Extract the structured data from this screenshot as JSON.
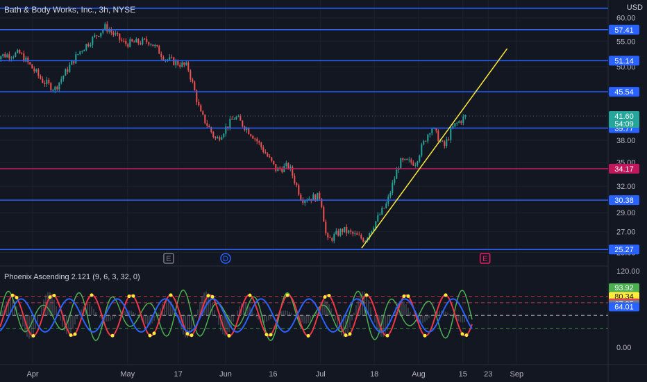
{
  "header": {
    "symbol_title": "Bath & Body Works, Inc., 3h, NYSE",
    "currency": "USD"
  },
  "indicator": {
    "title": "Phoenix Ascending 2.121 (9, 6, 3, 32, 0)",
    "y_ticks": [
      "120.00",
      "0.00"
    ],
    "badges": [
      {
        "label": "93.92",
        "value": 93.92,
        "color": "#4caf50"
      },
      {
        "label": "80.34",
        "value": 80.34,
        "color": "#ffeb3b"
      },
      {
        "label": "70.14",
        "value": 70.14,
        "color": "#f23645"
      },
      {
        "label": "67.95",
        "value": 67.95,
        "color": "#787b86"
      },
      {
        "label": "64.01",
        "value": 64.01,
        "color": "#2962ff"
      }
    ],
    "hlines": [
      {
        "value": 80,
        "color": "#f23645"
      },
      {
        "value": 70,
        "color": "#f23645"
      },
      {
        "value": 50,
        "color": "#ffffff"
      },
      {
        "value": 30,
        "color": "#4caf50"
      }
    ]
  },
  "price_axis": {
    "ticks": [
      "60.00",
      "55.00",
      "50.00",
      "38.00",
      "35.00",
      "32.00",
      "29.00",
      "27.00",
      "25.00"
    ]
  },
  "time_axis": {
    "ticks": [
      "Apr",
      "May",
      "17",
      "Jun",
      "16",
      "Jul",
      "18",
      "Aug",
      "15",
      "23",
      "Sep"
    ]
  },
  "events": [
    {
      "label": "E",
      "color": "#787b86",
      "shape": "square"
    },
    {
      "label": "D",
      "color": "#2962ff",
      "shape": "circle"
    },
    {
      "label": "E",
      "color": "#e91e63",
      "shape": "square"
    }
  ],
  "chart_data": {
    "type": "candlestick",
    "y_scale": "log",
    "ylim": [
      24.7,
      62.5
    ],
    "last_price": {
      "label": "41.60",
      "value": 41.6,
      "color": "#26a69a"
    },
    "countdown": "54:09",
    "levels": [
      {
        "label": "57.41",
        "value": 57.41,
        "color": "#2962ff"
      },
      {
        "label": "51.14",
        "value": 51.14,
        "color": "#2962ff"
      },
      {
        "label": "45.54",
        "value": 45.54,
        "color": "#2962ff"
      },
      {
        "label": "39.77",
        "value": 39.77,
        "color": "#2962ff"
      },
      {
        "label": "34.17",
        "value": 34.17,
        "color": "#c2185b"
      },
      {
        "label": "30.38",
        "value": 30.38,
        "color": "#2962ff"
      },
      {
        "label": "25.27",
        "value": 25.27,
        "color": "#2962ff"
      }
    ],
    "top_line": {
      "value": 62.2,
      "color": "#2962ff"
    },
    "trendline": {
      "color": "#ffeb3b",
      "from": {
        "date": "Jul 14",
        "value": 25.4
      },
      "to": {
        "date": "Aug 29",
        "value": 53.5
      }
    },
    "anchors": [
      {
        "date": "Mar 20",
        "close": 52.0
      },
      {
        "date": "Mar 28",
        "close": 52.5
      },
      {
        "date": "Apr 4",
        "close": 47.5
      },
      {
        "date": "Apr 8",
        "close": 46.0
      },
      {
        "date": "Apr 16",
        "close": 53.0
      },
      {
        "date": "Apr 24",
        "close": 58.0
      },
      {
        "date": "Apr 30",
        "close": 54.5
      },
      {
        "date": "May 8",
        "close": 55.0
      },
      {
        "date": "May 13",
        "close": 51.5
      },
      {
        "date": "May 20",
        "close": 50.0
      },
      {
        "date": "May 24",
        "close": 42.0
      },
      {
        "date": "May 29",
        "close": 38.0
      },
      {
        "date": "Jun 4",
        "close": 41.5
      },
      {
        "date": "Jun 10",
        "close": 38.5
      },
      {
        "date": "Jun 17",
        "close": 34.0
      },
      {
        "date": "Jun 21",
        "close": 34.5
      },
      {
        "date": "Jun 25",
        "close": 30.5
      },
      {
        "date": "Jul 1",
        "close": 30.8
      },
      {
        "date": "Jul 3",
        "close": 26.0
      },
      {
        "date": "Jul 8",
        "close": 27.2
      },
      {
        "date": "Jul 15",
        "close": 26.2
      },
      {
        "date": "Jul 22",
        "close": 30.0
      },
      {
        "date": "Jul 26",
        "close": 35.0
      },
      {
        "date": "Jul 31",
        "close": 35.0
      },
      {
        "date": "Aug 5",
        "close": 40.0
      },
      {
        "date": "Aug 9",
        "close": 37.0
      },
      {
        "date": "Aug 12",
        "close": 40.0
      },
      {
        "date": "Aug 16",
        "close": 41.6
      }
    ],
    "oscillator": {
      "ylim": [
        0,
        120
      ],
      "series": [
        {
          "color": "#4caf50"
        },
        {
          "color": "#f23645"
        },
        {
          "color": "#2962ff"
        }
      ]
    }
  }
}
